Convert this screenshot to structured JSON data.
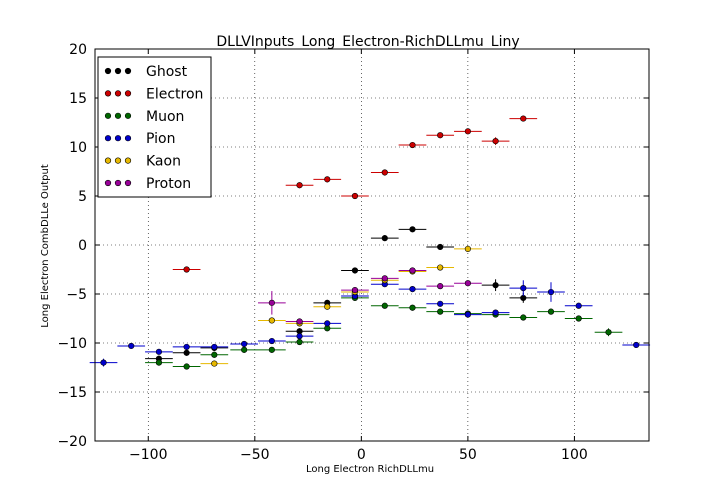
{
  "chart_data": {
    "type": "scatter",
    "title": "DLLVInputs_Long_Electron-RichDLLmu_Liny",
    "xlabel": "Long Electron RichDLLmu",
    "ylabel": "Long Electron CombDLLe Output",
    "xlim": [
      -125,
      135
    ],
    "ylim": [
      -20,
      20
    ],
    "xticks": [
      -100,
      -50,
      0,
      50,
      100
    ],
    "xtick_labels": [
      "−100",
      "−50",
      "0",
      "50",
      "100"
    ],
    "yticks": [
      -20,
      -15,
      -10,
      -5,
      0,
      5,
      10,
      15,
      20
    ],
    "ytick_labels": [
      "−20",
      "−15",
      "−10",
      "−5",
      "0",
      "5",
      "10",
      "15",
      "20"
    ],
    "grid": true,
    "legend_position": "top-left",
    "x_error": 6.5,
    "series": [
      {
        "name": "Ghost",
        "color": "#000000",
        "points": [
          {
            "x": -95,
            "y": -11.6,
            "ey": 0.3
          },
          {
            "x": -82,
            "y": -11.0,
            "ey": 0.3
          },
          {
            "x": -69,
            "y": -10.5,
            "ey": 0.3
          },
          {
            "x": -29,
            "y": -8.8,
            "ey": 0.3
          },
          {
            "x": -16,
            "y": -5.9,
            "ey": 0.3
          },
          {
            "x": -3,
            "y": -2.6,
            "ey": 0.2
          },
          {
            "x": 11,
            "y": 0.7,
            "ey": 0.2
          },
          {
            "x": 24,
            "y": 1.6,
            "ey": 0.2
          },
          {
            "x": 37,
            "y": -0.2,
            "ey": 0.2
          },
          {
            "x": 63,
            "y": -4.1,
            "ey": 0.6
          },
          {
            "x": 76,
            "y": -5.4,
            "ey": 0.5
          }
        ]
      },
      {
        "name": "Electron",
        "color": "#cc0000",
        "points": [
          {
            "x": -82,
            "y": -2.5,
            "ey": 0.2
          },
          {
            "x": -29,
            "y": 6.1,
            "ey": 0.2
          },
          {
            "x": -16,
            "y": 6.7,
            "ey": 0.2
          },
          {
            "x": -3,
            "y": 5.0,
            "ey": 0.1
          },
          {
            "x": 11,
            "y": 7.4,
            "ey": 0.1
          },
          {
            "x": 24,
            "y": 10.2,
            "ey": 0.1
          },
          {
            "x": 37,
            "y": 11.2,
            "ey": 0.1
          },
          {
            "x": 50,
            "y": 11.6,
            "ey": 0.1
          },
          {
            "x": 63,
            "y": 10.6,
            "ey": 0.4
          },
          {
            "x": 76,
            "y": 12.9,
            "ey": 0.2
          }
        ]
      },
      {
        "name": "Muon",
        "color": "#006600",
        "points": [
          {
            "x": -95,
            "y": -12.0,
            "ey": 0.3
          },
          {
            "x": -82,
            "y": -12.4,
            "ey": 0.3
          },
          {
            "x": -69,
            "y": -11.2,
            "ey": 0.3
          },
          {
            "x": -55,
            "y": -10.7,
            "ey": 0.2
          },
          {
            "x": -42,
            "y": -10.7,
            "ey": 0.2
          },
          {
            "x": -29,
            "y": -9.9,
            "ey": 0.2
          },
          {
            "x": -16,
            "y": -8.5,
            "ey": 0.2
          },
          {
            "x": -3,
            "y": -5.4,
            "ey": 0.1
          },
          {
            "x": 11,
            "y": -6.2,
            "ey": 0.1
          },
          {
            "x": 24,
            "y": -6.4,
            "ey": 0.1
          },
          {
            "x": 37,
            "y": -6.8,
            "ey": 0.1
          },
          {
            "x": 50,
            "y": -7.0,
            "ey": 0.1
          },
          {
            "x": 63,
            "y": -7.1,
            "ey": 0.1
          },
          {
            "x": 76,
            "y": -7.4,
            "ey": 0.1
          },
          {
            "x": 89,
            "y": -6.8,
            "ey": 0.1
          },
          {
            "x": 102,
            "y": -7.5,
            "ey": 0.1
          },
          {
            "x": 116,
            "y": -8.9,
            "ey": 0.4
          }
        ]
      },
      {
        "name": "Pion",
        "color": "#0000cc",
        "points": [
          {
            "x": -121,
            "y": -12.0,
            "ey": 0.4
          },
          {
            "x": -108,
            "y": -10.3,
            "ey": 0.2
          },
          {
            "x": -95,
            "y": -10.9,
            "ey": 0.2
          },
          {
            "x": -82,
            "y": -10.4,
            "ey": 0.2
          },
          {
            "x": -69,
            "y": -10.4,
            "ey": 0.2
          },
          {
            "x": -55,
            "y": -10.1,
            "ey": 0.1
          },
          {
            "x": -42,
            "y": -9.8,
            "ey": 0.1
          },
          {
            "x": -29,
            "y": -9.3,
            "ey": 0.1
          },
          {
            "x": -16,
            "y": -8.0,
            "ey": 0.1
          },
          {
            "x": -3,
            "y": -5.2,
            "ey": 0.1
          },
          {
            "x": 11,
            "y": -4.0,
            "ey": 0.1
          },
          {
            "x": 24,
            "y": -4.5,
            "ey": 0.1
          },
          {
            "x": 37,
            "y": -6.0,
            "ey": 0.1
          },
          {
            "x": 50,
            "y": -7.1,
            "ey": 0.1
          },
          {
            "x": 63,
            "y": -6.9,
            "ey": 0.1
          },
          {
            "x": 76,
            "y": -4.4,
            "ey": 0.8
          },
          {
            "x": 89,
            "y": -4.8,
            "ey": 1.0
          },
          {
            "x": 102,
            "y": -6.2,
            "ey": 0.2
          },
          {
            "x": 129,
            "y": -10.2,
            "ey": 0.2
          }
        ]
      },
      {
        "name": "Kaon",
        "color": "#e6b800",
        "points": [
          {
            "x": -69,
            "y": -12.1,
            "ey": 0.2
          },
          {
            "x": -42,
            "y": -7.7,
            "ey": 0.3
          },
          {
            "x": -29,
            "y": -8.0,
            "ey": 0.2
          },
          {
            "x": -16,
            "y": -6.3,
            "ey": 0.2
          },
          {
            "x": -3,
            "y": -4.8,
            "ey": 0.2
          },
          {
            "x": 11,
            "y": -3.6,
            "ey": 0.1
          },
          {
            "x": 24,
            "y": -2.7,
            "ey": 0.1
          },
          {
            "x": 37,
            "y": -2.3,
            "ey": 0.1
          },
          {
            "x": 50,
            "y": -0.4,
            "ey": 0.2
          }
        ]
      },
      {
        "name": "Proton",
        "color": "#990099",
        "points": [
          {
            "x": -42,
            "y": -5.9,
            "ey": 1.2
          },
          {
            "x": -29,
            "y": -7.8,
            "ey": 0.2
          },
          {
            "x": -3,
            "y": -4.6,
            "ey": 0.2
          },
          {
            "x": 11,
            "y": -3.4,
            "ey": 0.1
          },
          {
            "x": 24,
            "y": -2.6,
            "ey": 0.1
          },
          {
            "x": 37,
            "y": -4.2,
            "ey": 0.1
          },
          {
            "x": 50,
            "y": -3.9,
            "ey": 0.1
          }
        ]
      }
    ]
  }
}
